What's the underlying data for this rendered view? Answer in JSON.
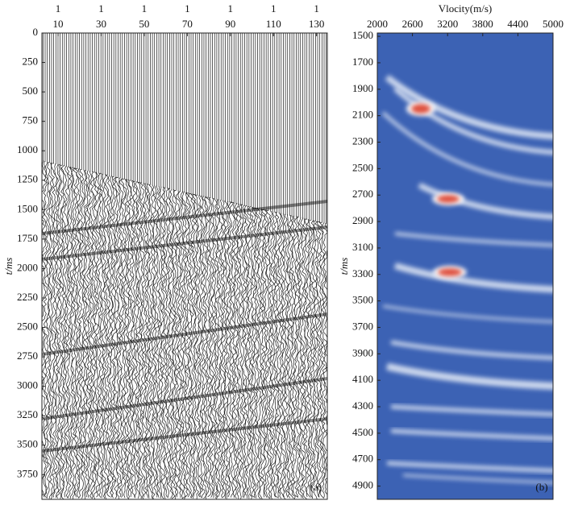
{
  "chart_data": [
    {
      "type": "seismic-gather",
      "panel_label": "(a)",
      "y_label": "t/ms",
      "shot_labels": [
        "1",
        "1",
        "1",
        "1",
        "1",
        "1",
        "1"
      ],
      "xticks": [
        10,
        30,
        50,
        70,
        90,
        110,
        130
      ],
      "xlim": [
        2.5,
        135
      ],
      "ylim": [
        0,
        3960
      ],
      "yticks": [
        0,
        250,
        500,
        750,
        1000,
        1250,
        1500,
        1750,
        2000,
        2250,
        2500,
        2750,
        3000,
        3250,
        3500,
        3750
      ]
    },
    {
      "type": "velocity-spectrum",
      "panel_label": "(b)",
      "x_label": "Vlocity(m/s)",
      "y_label": "t/ms",
      "xlim": [
        2000,
        5000
      ],
      "xticks": [
        2000,
        2600,
        3200,
        3800,
        4400,
        5000
      ],
      "ylim": [
        1475,
        5000
      ],
      "yticks": [
        1500,
        1700,
        1900,
        2100,
        2300,
        2500,
        2700,
        2900,
        3100,
        3300,
        3500,
        3700,
        3900,
        4100,
        4300,
        4500,
        4700,
        4900
      ],
      "color": "#3c62b4"
    }
  ]
}
